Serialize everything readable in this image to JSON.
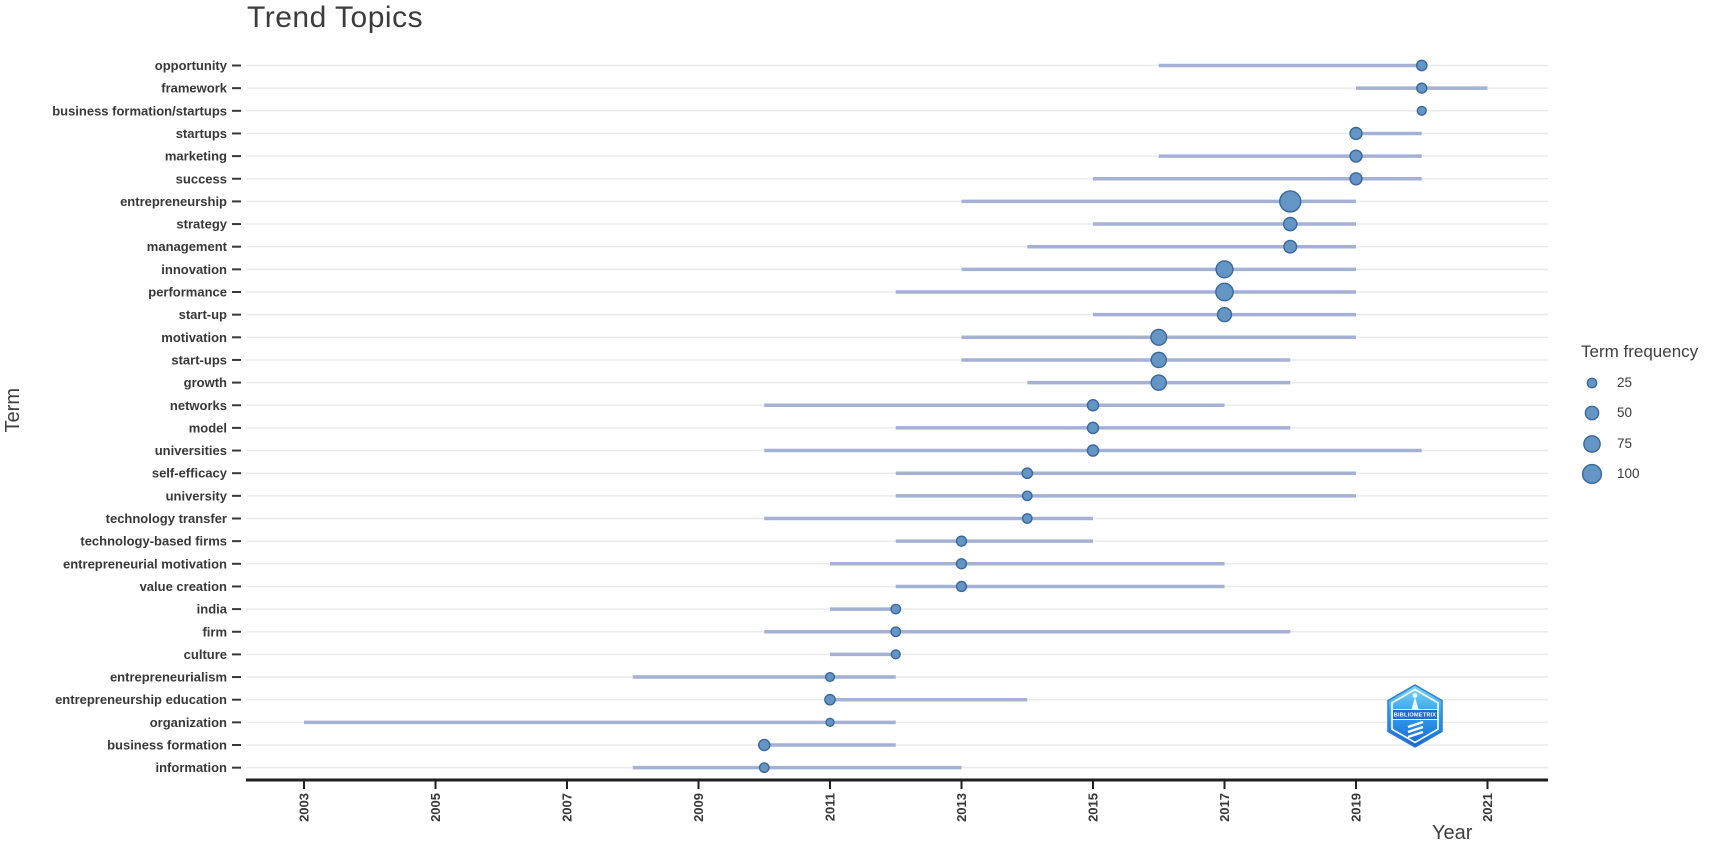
{
  "title": "Trend Topics",
  "axes": {
    "x_label": "Year",
    "y_label": "Term"
  },
  "legend": {
    "title": "Term frequency"
  },
  "watermark": {
    "label": "BIBLIOMETRIX"
  },
  "colors": {
    "bubble_fill": "#6495c5",
    "bubble_stroke": "#38699c",
    "range_line": "#a4b1d5",
    "gridline": "#ebebeb",
    "axis": "#1f1f1f",
    "tick_text": "#383838",
    "title_text": "#3c3c3c"
  },
  "chart_data": {
    "type": "scatter",
    "subtype": "bubble-timeline",
    "title": "Trend Topics",
    "xlabel": "Year",
    "ylabel": "Term",
    "xlim": [
      2002,
      2022
    ],
    "x_ticks": [
      2003,
      2005,
      2007,
      2009,
      2011,
      2013,
      2015,
      2017,
      2019,
      2021
    ],
    "grid": "horizontal-only",
    "legend_position": "right",
    "bubble_size_legend": [
      25,
      50,
      75,
      100
    ],
    "terms": [
      {
        "term": "opportunity",
        "q1": 2016,
        "median": 2020,
        "q3": 2020,
        "freq": 30
      },
      {
        "term": "framework",
        "q1": 2019,
        "median": 2020,
        "q3": 2021,
        "freq": 28
      },
      {
        "term": "business formation/startups",
        "q1": 2020,
        "median": 2020,
        "q3": 2020,
        "freq": 22
      },
      {
        "term": "startups",
        "q1": 2019,
        "median": 2019,
        "q3": 2020,
        "freq": 40
      },
      {
        "term": "marketing",
        "q1": 2016,
        "median": 2019,
        "q3": 2020,
        "freq": 40
      },
      {
        "term": "success",
        "q1": 2015,
        "median": 2019,
        "q3": 2020,
        "freq": 40
      },
      {
        "term": "entrepreneurship",
        "q1": 2013,
        "median": 2018,
        "q3": 2019,
        "freq": 125
      },
      {
        "term": "strategy",
        "q1": 2015,
        "median": 2018,
        "q3": 2019,
        "freq": 50
      },
      {
        "term": "management",
        "q1": 2014,
        "median": 2018,
        "q3": 2019,
        "freq": 45
      },
      {
        "term": "innovation",
        "q1": 2013,
        "median": 2017,
        "q3": 2019,
        "freq": 80
      },
      {
        "term": "performance",
        "q1": 2012,
        "median": 2017,
        "q3": 2019,
        "freq": 85
      },
      {
        "term": "start-up",
        "q1": 2015,
        "median": 2017,
        "q3": 2019,
        "freq": 55
      },
      {
        "term": "motivation",
        "q1": 2013,
        "median": 2016,
        "q3": 2019,
        "freq": 70
      },
      {
        "term": "start-ups",
        "q1": 2013,
        "median": 2016,
        "q3": 2018,
        "freq": 65
      },
      {
        "term": "growth",
        "q1": 2014,
        "median": 2016,
        "q3": 2018,
        "freq": 65
      },
      {
        "term": "networks",
        "q1": 2010,
        "median": 2015,
        "q3": 2017,
        "freq": 35
      },
      {
        "term": "model",
        "q1": 2012,
        "median": 2015,
        "q3": 2018,
        "freq": 35
      },
      {
        "term": "universities",
        "q1": 2010,
        "median": 2015,
        "q3": 2020,
        "freq": 35
      },
      {
        "term": "self-efficacy",
        "q1": 2012,
        "median": 2014,
        "q3": 2019,
        "freq": 30
      },
      {
        "term": "university",
        "q1": 2012,
        "median": 2014,
        "q3": 2019,
        "freq": 25
      },
      {
        "term": "technology transfer",
        "q1": 2010,
        "median": 2014,
        "q3": 2015,
        "freq": 25
      },
      {
        "term": "technology-based firms",
        "q1": 2012,
        "median": 2013,
        "q3": 2015,
        "freq": 28
      },
      {
        "term": "entrepreneurial motivation",
        "q1": 2011,
        "median": 2013,
        "q3": 2017,
        "freq": 28
      },
      {
        "term": "value creation",
        "q1": 2012,
        "median": 2013,
        "q3": 2017,
        "freq": 28
      },
      {
        "term": "india",
        "q1": 2011,
        "median": 2012,
        "q3": 2012,
        "freq": 25
      },
      {
        "term": "firm",
        "q1": 2010,
        "median": 2012,
        "q3": 2018,
        "freq": 25
      },
      {
        "term": "culture",
        "q1": 2011,
        "median": 2012,
        "q3": 2012,
        "freq": 22
      },
      {
        "term": "entrepreneurialism",
        "q1": 2008,
        "median": 2011,
        "q3": 2012,
        "freq": 22
      },
      {
        "term": "entrepreneurship education",
        "q1": 2011,
        "median": 2011,
        "q3": 2014,
        "freq": 30
      },
      {
        "term": "organization",
        "q1": 2003,
        "median": 2011,
        "q3": 2012,
        "freq": 18
      },
      {
        "term": "business formation",
        "q1": 2010,
        "median": 2010,
        "q3": 2012,
        "freq": 35
      },
      {
        "term": "information",
        "q1": 2008,
        "median": 2010,
        "q3": 2013,
        "freq": 25
      }
    ]
  }
}
